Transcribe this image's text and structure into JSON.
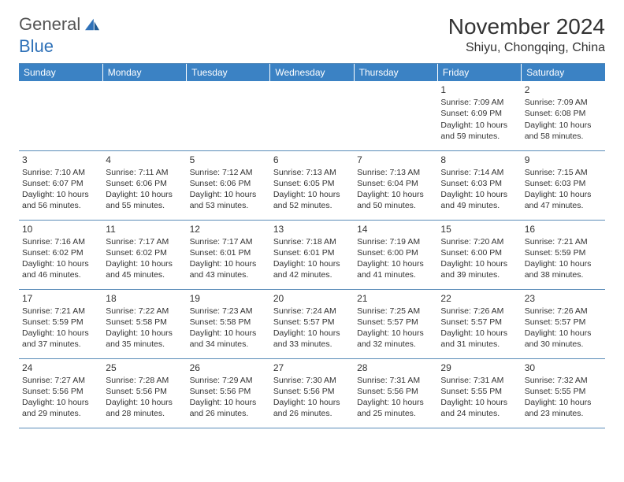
{
  "logo": {
    "word1": "General",
    "word2": "Blue",
    "icon_name": "sail-icon",
    "color_gray": "#555555",
    "color_blue": "#2f71b8"
  },
  "header": {
    "month_title": "November 2024",
    "location": "Shiyu, Chongqing, China"
  },
  "style": {
    "header_bg": "#3b82c4",
    "header_fg": "#ffffff",
    "rule_color": "#5a8cb8",
    "text_color": "#333333",
    "daynum_fontsize": 12,
    "body_fontsize": 10.5,
    "th_fontsize": 12,
    "title_fontsize": 28,
    "location_fontsize": 16
  },
  "weekdays": [
    "Sunday",
    "Monday",
    "Tuesday",
    "Wednesday",
    "Thursday",
    "Friday",
    "Saturday"
  ],
  "rows": [
    [
      null,
      null,
      null,
      null,
      null,
      {
        "d": "1",
        "sr": "7:09 AM",
        "ss": "6:09 PM",
        "dl": "10 hours and 59 minutes."
      },
      {
        "d": "2",
        "sr": "7:09 AM",
        "ss": "6:08 PM",
        "dl": "10 hours and 58 minutes."
      }
    ],
    [
      {
        "d": "3",
        "sr": "7:10 AM",
        "ss": "6:07 PM",
        "dl": "10 hours and 56 minutes."
      },
      {
        "d": "4",
        "sr": "7:11 AM",
        "ss": "6:06 PM",
        "dl": "10 hours and 55 minutes."
      },
      {
        "d": "5",
        "sr": "7:12 AM",
        "ss": "6:06 PM",
        "dl": "10 hours and 53 minutes."
      },
      {
        "d": "6",
        "sr": "7:13 AM",
        "ss": "6:05 PM",
        "dl": "10 hours and 52 minutes."
      },
      {
        "d": "7",
        "sr": "7:13 AM",
        "ss": "6:04 PM",
        "dl": "10 hours and 50 minutes."
      },
      {
        "d": "8",
        "sr": "7:14 AM",
        "ss": "6:03 PM",
        "dl": "10 hours and 49 minutes."
      },
      {
        "d": "9",
        "sr": "7:15 AM",
        "ss": "6:03 PM",
        "dl": "10 hours and 47 minutes."
      }
    ],
    [
      {
        "d": "10",
        "sr": "7:16 AM",
        "ss": "6:02 PM",
        "dl": "10 hours and 46 minutes."
      },
      {
        "d": "11",
        "sr": "7:17 AM",
        "ss": "6:02 PM",
        "dl": "10 hours and 45 minutes."
      },
      {
        "d": "12",
        "sr": "7:17 AM",
        "ss": "6:01 PM",
        "dl": "10 hours and 43 minutes."
      },
      {
        "d": "13",
        "sr": "7:18 AM",
        "ss": "6:01 PM",
        "dl": "10 hours and 42 minutes."
      },
      {
        "d": "14",
        "sr": "7:19 AM",
        "ss": "6:00 PM",
        "dl": "10 hours and 41 minutes."
      },
      {
        "d": "15",
        "sr": "7:20 AM",
        "ss": "6:00 PM",
        "dl": "10 hours and 39 minutes."
      },
      {
        "d": "16",
        "sr": "7:21 AM",
        "ss": "5:59 PM",
        "dl": "10 hours and 38 minutes."
      }
    ],
    [
      {
        "d": "17",
        "sr": "7:21 AM",
        "ss": "5:59 PM",
        "dl": "10 hours and 37 minutes."
      },
      {
        "d": "18",
        "sr": "7:22 AM",
        "ss": "5:58 PM",
        "dl": "10 hours and 35 minutes."
      },
      {
        "d": "19",
        "sr": "7:23 AM",
        "ss": "5:58 PM",
        "dl": "10 hours and 34 minutes."
      },
      {
        "d": "20",
        "sr": "7:24 AM",
        "ss": "5:57 PM",
        "dl": "10 hours and 33 minutes."
      },
      {
        "d": "21",
        "sr": "7:25 AM",
        "ss": "5:57 PM",
        "dl": "10 hours and 32 minutes."
      },
      {
        "d": "22",
        "sr": "7:26 AM",
        "ss": "5:57 PM",
        "dl": "10 hours and 31 minutes."
      },
      {
        "d": "23",
        "sr": "7:26 AM",
        "ss": "5:57 PM",
        "dl": "10 hours and 30 minutes."
      }
    ],
    [
      {
        "d": "24",
        "sr": "7:27 AM",
        "ss": "5:56 PM",
        "dl": "10 hours and 29 minutes."
      },
      {
        "d": "25",
        "sr": "7:28 AM",
        "ss": "5:56 PM",
        "dl": "10 hours and 28 minutes."
      },
      {
        "d": "26",
        "sr": "7:29 AM",
        "ss": "5:56 PM",
        "dl": "10 hours and 26 minutes."
      },
      {
        "d": "27",
        "sr": "7:30 AM",
        "ss": "5:56 PM",
        "dl": "10 hours and 26 minutes."
      },
      {
        "d": "28",
        "sr": "7:31 AM",
        "ss": "5:56 PM",
        "dl": "10 hours and 25 minutes."
      },
      {
        "d": "29",
        "sr": "7:31 AM",
        "ss": "5:55 PM",
        "dl": "10 hours and 24 minutes."
      },
      {
        "d": "30",
        "sr": "7:32 AM",
        "ss": "5:55 PM",
        "dl": "10 hours and 23 minutes."
      }
    ]
  ],
  "labels": {
    "sunrise": "Sunrise: ",
    "sunset": "Sunset: ",
    "daylight": "Daylight: "
  }
}
